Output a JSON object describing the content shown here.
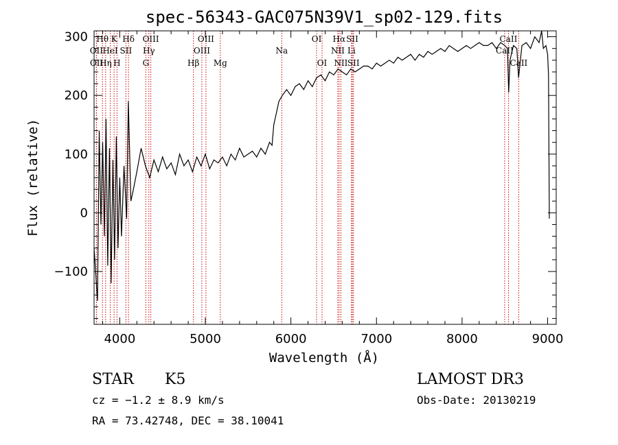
{
  "chart_data": {
    "type": "line",
    "title": "spec-56343-GAC075N39V1_sp02-129.fits",
    "xlabel": "Wavelength (Å)",
    "ylabel": "Flux (relative)",
    "xlim": [
      3700,
      9100
    ],
    "ylim": [
      -190,
      310
    ],
    "x_ticks": [
      4000,
      5000,
      6000,
      7000,
      8000,
      9000
    ],
    "y_ticks": [
      -100,
      0,
      100,
      200,
      300
    ],
    "x_tick_labels": [
      "4000",
      "5000",
      "6000",
      "7000",
      "8000",
      "9000"
    ],
    "y_tick_labels": [
      "−100",
      "0",
      "100",
      "200",
      "300"
    ],
    "series": [
      {
        "name": "flux",
        "x": [
          3700,
          3740,
          3760,
          3780,
          3800,
          3820,
          3840,
          3860,
          3880,
          3900,
          3920,
          3940,
          3960,
          3980,
          4000,
          4020,
          4050,
          4080,
          4100,
          4130,
          4160,
          4200,
          4250,
          4300,
          4350,
          4400,
          4450,
          4500,
          4550,
          4600,
          4650,
          4700,
          4750,
          4800,
          4850,
          4900,
          4950,
          5000,
          5050,
          5100,
          5150,
          5200,
          5250,
          5300,
          5350,
          5400,
          5450,
          5500,
          5550,
          5600,
          5650,
          5700,
          5750,
          5780,
          5800,
          5830,
          5860,
          5900,
          5950,
          6000,
          6050,
          6100,
          6150,
          6200,
          6250,
          6300,
          6350,
          6400,
          6450,
          6500,
          6550,
          6600,
          6650,
          6700,
          6750,
          6800,
          6850,
          6900,
          6950,
          7000,
          7050,
          7100,
          7150,
          7200,
          7250,
          7300,
          7350,
          7400,
          7450,
          7500,
          7550,
          7600,
          7650,
          7700,
          7750,
          7800,
          7850,
          7900,
          7950,
          8000,
          8050,
          8100,
          8150,
          8200,
          8250,
          8300,
          8350,
          8400,
          8450,
          8500,
          8530,
          8545,
          8560,
          8600,
          8640,
          8660,
          8700,
          8750,
          8800,
          8850,
          8900,
          8930,
          8950,
          8980,
          9000,
          9010,
          9020
        ],
        "values": [
          -60,
          -150,
          140,
          -20,
          120,
          -40,
          160,
          -90,
          110,
          -120,
          90,
          -80,
          130,
          -60,
          60,
          -40,
          80,
          -10,
          190,
          20,
          40,
          70,
          110,
          80,
          60,
          90,
          70,
          95,
          75,
          85,
          65,
          100,
          80,
          90,
          70,
          95,
          80,
          100,
          75,
          90,
          85,
          95,
          80,
          100,
          90,
          110,
          95,
          100,
          105,
          95,
          110,
          100,
          120,
          115,
          150,
          170,
          190,
          200,
          210,
          200,
          215,
          220,
          210,
          225,
          215,
          230,
          235,
          225,
          240,
          235,
          245,
          240,
          235,
          245,
          240,
          245,
          250,
          250,
          245,
          255,
          250,
          255,
          260,
          255,
          265,
          260,
          265,
          270,
          260,
          270,
          265,
          275,
          270,
          275,
          280,
          275,
          285,
          280,
          275,
          280,
          285,
          280,
          285,
          290,
          285,
          285,
          290,
          280,
          290,
          285,
          280,
          205,
          260,
          285,
          280,
          230,
          285,
          290,
          280,
          300,
          290,
          310,
          280,
          285,
          270,
          235,
          -10
        ]
      }
    ],
    "spectral_lines": [
      {
        "label": "Hθ",
        "wavelength": 3798,
        "row": 1
      },
      {
        "label": "OII",
        "wavelength": 3727,
        "row": 2
      },
      {
        "label": "OII",
        "wavelength": 3729,
        "row": 3
      },
      {
        "label": "Hη",
        "wavelength": 3835,
        "row": 3
      },
      {
        "label": "K",
        "wavelength": 3934,
        "row": 1
      },
      {
        "label": "HeI",
        "wavelength": 3889,
        "row": 2
      },
      {
        "label": "H",
        "wavelength": 3968,
        "row": 3
      },
      {
        "label": "SII",
        "wavelength": 4072,
        "row": 2
      },
      {
        "label": "Hδ",
        "wavelength": 4102,
        "row": 1
      },
      {
        "label": "OIII",
        "wavelength": 4363,
        "row": 1
      },
      {
        "label": "Hγ",
        "wavelength": 4340,
        "row": 2
      },
      {
        "label": "G",
        "wavelength": 4305,
        "row": 3
      },
      {
        "label": "OIII",
        "wavelength": 5007,
        "row": 1
      },
      {
        "label": "OIII",
        "wavelength": 4959,
        "row": 2
      },
      {
        "label": "Hβ",
        "wavelength": 4861,
        "row": 3
      },
      {
        "label": "Mg",
        "wavelength": 5175,
        "row": 3
      },
      {
        "label": "Na",
        "wavelength": 5893,
        "row": 2
      },
      {
        "label": "OI",
        "wavelength": 6300,
        "row": 1
      },
      {
        "label": "OI",
        "wavelength": 6364,
        "row": 3
      },
      {
        "label": "Hα",
        "wavelength": 6563,
        "row": 1
      },
      {
        "label": "NII",
        "wavelength": 6548,
        "row": 2
      },
      {
        "label": "NII",
        "wavelength": 6584,
        "row": 3
      },
      {
        "label": "SII",
        "wavelength": 6717,
        "row": 1
      },
      {
        "label": "Li",
        "wavelength": 6708,
        "row": 2
      },
      {
        "label": "SII",
        "wavelength": 6731,
        "row": 3
      },
      {
        "label": "CaII",
        "wavelength": 8542,
        "row": 1
      },
      {
        "label": "CaII",
        "wavelength": 8498,
        "row": 2
      },
      {
        "label": "CaII",
        "wavelength": 8662,
        "row": 3
      }
    ]
  },
  "info": {
    "object_class": "STAR",
    "subclass": "K5",
    "cz": "cz = −1.2 ± 8.9 km/s",
    "radec": "RA =  73.42748, DEC =  38.10041",
    "survey": "LAMOST DR3",
    "obs_date": "Obs-Date: 20130219"
  }
}
